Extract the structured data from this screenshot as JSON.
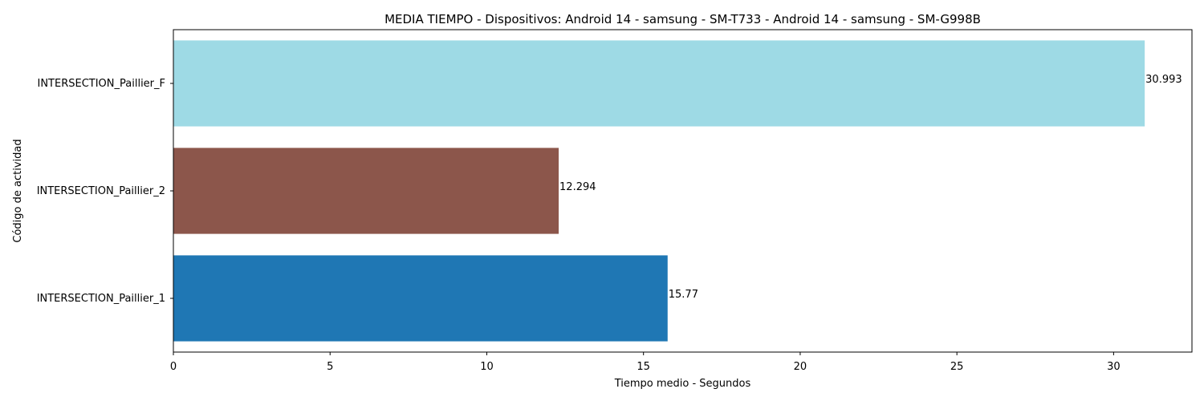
{
  "chart_data": {
    "type": "bar",
    "orientation": "horizontal",
    "title": "MEDIA TIEMPO - Dispositivos: Android 14 - samsung - SM-T733 - Android 14 - samsung - SM-G998B",
    "xlabel": "Tiempo medio - Segundos",
    "ylabel": "Código de actividad",
    "categories": [
      "INTERSECTION_Paillier_1",
      "INTERSECTION_Paillier_2",
      "INTERSECTION_Paillier_F"
    ],
    "values": [
      15.77,
      12.294,
      30.993
    ],
    "data_labels": [
      "15.77",
      "12.294",
      "30.993"
    ],
    "colors": [
      "#1f77b4",
      "#8c564b",
      "#9edae5"
    ],
    "xlim": [
      0,
      32.5
    ],
    "xticks": [
      0,
      5,
      10,
      15,
      20,
      25,
      30
    ],
    "grid": false,
    "legend": "none"
  }
}
